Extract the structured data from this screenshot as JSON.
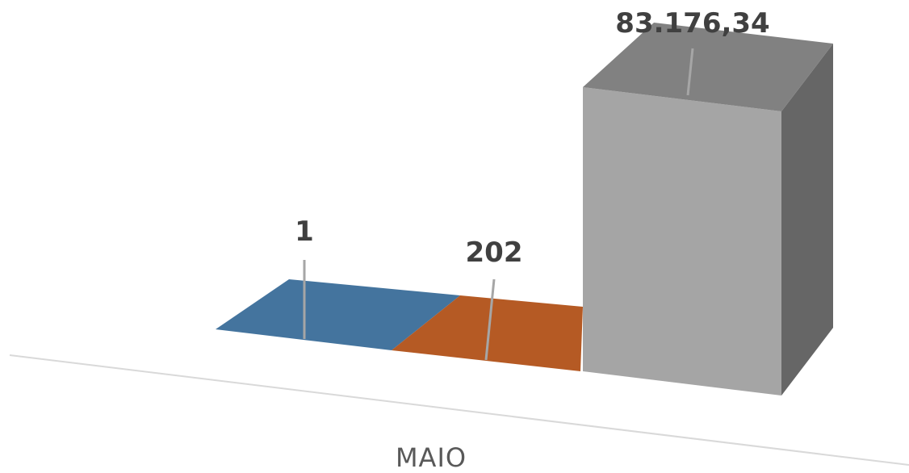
{
  "chart_data": {
    "type": "bar",
    "categories": [
      "MAIO"
    ],
    "series": [
      {
        "values": [
          1
        ]
      },
      {
        "values": [
          202
        ]
      },
      {
        "values": [
          83176.34
        ]
      }
    ],
    "data_labels": [
      "1",
      "202",
      "83.176,34"
    ],
    "colors": [
      "#44749E",
      "#B55A24",
      "#A5A5A5"
    ],
    "view": "3d-perspective",
    "grid": false,
    "legend": "none"
  }
}
